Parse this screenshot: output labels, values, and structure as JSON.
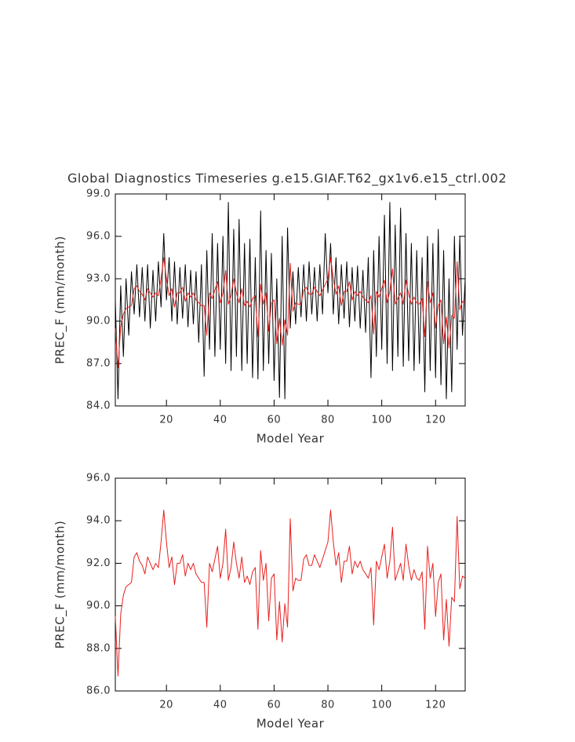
{
  "chart_data": [
    {
      "type": "line",
      "title": "Global Diagnostics Timeseries g.e15.GIAF.T62_gx1v6.e15_ctrl.002",
      "xlabel": "Model Year",
      "ylabel": "PREC_F (mm/month)",
      "x": [
        1,
        2,
        3,
        4,
        5,
        6,
        7,
        8,
        9,
        10,
        11,
        12,
        13,
        14,
        15,
        16,
        17,
        18,
        19,
        20,
        21,
        22,
        23,
        24,
        25,
        26,
        27,
        28,
        29,
        30,
        31,
        32,
        33,
        34,
        35,
        36,
        37,
        38,
        39,
        40,
        41,
        42,
        43,
        44,
        45,
        46,
        47,
        48,
        49,
        50,
        51,
        52,
        53,
        54,
        55,
        56,
        57,
        58,
        59,
        60,
        61,
        62,
        63,
        64,
        65,
        66,
        67,
        68,
        69,
        70,
        71,
        72,
        73,
        74,
        75,
        76,
        77,
        78,
        79,
        80,
        81,
        82,
        83,
        84,
        85,
        86,
        87,
        88,
        89,
        90,
        91,
        92,
        93,
        94,
        95,
        96,
        97,
        98,
        99,
        100,
        101,
        102,
        103,
        104,
        105,
        106,
        107,
        108,
        109,
        110,
        111,
        112,
        113,
        114,
        115,
        116,
        117,
        118,
        119,
        120,
        121,
        122,
        123,
        124,
        125,
        126,
        127,
        128,
        129,
        130,
        131
      ],
      "xlim": [
        1,
        131
      ],
      "xticks": [
        20,
        40,
        60,
        80,
        100,
        120
      ],
      "ylim": [
        84,
        99
      ],
      "yticks": [
        {
          "value": 84,
          "label": "84.0"
        },
        {
          "value": 87,
          "label": "87.0"
        },
        {
          "value": 90,
          "label": "90.0"
        },
        {
          "value": 93,
          "label": "93.0"
        },
        {
          "value": 96,
          "label": "96.0"
        },
        {
          "value": 99,
          "label": "99.0"
        }
      ],
      "series": [
        {
          "color": "#000000",
          "values": [
            91.5,
            84.5,
            92.5,
            87.5,
            93.0,
            89.0,
            93.5,
            90.5,
            94.0,
            90.3,
            93.8,
            90.0,
            94.0,
            89.5,
            93.6,
            90.0,
            94.2,
            91.0,
            96.2,
            91.5,
            94.5,
            90.0,
            94.2,
            89.8,
            93.8,
            90.2,
            94.0,
            89.6,
            93.6,
            89.8,
            93.5,
            88.5,
            94.0,
            86.1,
            95.0,
            88.0,
            96.2,
            87.5,
            95.5,
            88.0,
            96.0,
            87.0,
            98.4,
            86.5,
            96.5,
            87.5,
            97.2,
            86.5,
            95.5,
            87.0,
            95.8,
            86.0,
            94.5,
            85.9,
            97.8,
            86.5,
            95.0,
            87.0,
            94.8,
            85.8,
            93.0,
            84.6,
            96.0,
            84.5,
            96.6,
            89.5,
            93.5,
            89.8,
            93.8,
            90.3,
            94.0,
            90.0,
            94.2,
            90.5,
            93.8,
            90.0,
            94.0,
            90.5,
            96.2,
            92.0,
            95.5,
            90.5,
            94.5,
            89.8,
            94.0,
            90.2,
            94.2,
            89.6,
            93.8,
            90.0,
            93.9,
            89.5,
            93.6,
            89.2,
            94.5,
            86.0,
            95.0,
            87.5,
            96.0,
            88.0,
            97.5,
            87.0,
            98.4,
            86.5,
            96.8,
            87.5,
            98.0,
            86.8,
            96.2,
            87.2,
            95.5,
            86.5,
            95.0,
            87.0,
            94.5,
            85.0,
            96.0,
            86.5,
            95.5,
            86.0,
            96.5,
            85.5,
            95.0,
            84.5,
            93.0,
            85.0,
            96.0,
            88.0,
            96.0,
            89.0,
            93.0
          ]
        },
        {
          "color": "#e8201e",
          "values": [
            89.5,
            86.7,
            89.6,
            90.5,
            90.9,
            91.0,
            91.1,
            92.3,
            92.5,
            92.1,
            91.9,
            91.5,
            92.3,
            92.0,
            91.7,
            92.0,
            91.8,
            93.0,
            94.5,
            93.0,
            91.8,
            92.3,
            91.0,
            92.0,
            92.0,
            92.4,
            91.4,
            92.0,
            91.7,
            92.0,
            91.5,
            91.3,
            91.1,
            91.1,
            89.0,
            92.0,
            91.6,
            92.2,
            92.8,
            91.3,
            92.0,
            93.6,
            91.2,
            91.8,
            93.0,
            92.0,
            91.3,
            92.3,
            91.1,
            91.4,
            91.0,
            91.6,
            91.8,
            88.9,
            92.6,
            91.2,
            92.0,
            89.3,
            91.3,
            91.5,
            88.4,
            90.2,
            88.3,
            90.1,
            89.0,
            94.1,
            90.7,
            91.3,
            91.2,
            91.2,
            92.2,
            92.4,
            91.9,
            91.9,
            92.4,
            92.1,
            91.8,
            92.2,
            92.6,
            93.0,
            94.5,
            93.0,
            91.9,
            92.5,
            91.1,
            92.1,
            92.1,
            92.8,
            91.5,
            92.1,
            91.8,
            92.1,
            91.7,
            91.5,
            91.3,
            91.8,
            89.1,
            92.1,
            91.7,
            92.3,
            92.9,
            91.3,
            92.1,
            93.7,
            91.2,
            91.6,
            92.0,
            91.2,
            92.9,
            91.9,
            91.2,
            91.7,
            91.3,
            91.2,
            91.6,
            88.9,
            92.8,
            91.3,
            92.0,
            89.5,
            91.1,
            91.5,
            88.4,
            90.3,
            88.1,
            90.4,
            90.2,
            94.2,
            90.8,
            91.4,
            91.3
          ]
        }
      ]
    },
    {
      "type": "line",
      "xlabel": "Model Year",
      "ylabel": "PREC_F (mm/month)",
      "x": [
        1,
        2,
        3,
        4,
        5,
        6,
        7,
        8,
        9,
        10,
        11,
        12,
        13,
        14,
        15,
        16,
        17,
        18,
        19,
        20,
        21,
        22,
        23,
        24,
        25,
        26,
        27,
        28,
        29,
        30,
        31,
        32,
        33,
        34,
        35,
        36,
        37,
        38,
        39,
        40,
        41,
        42,
        43,
        44,
        45,
        46,
        47,
        48,
        49,
        50,
        51,
        52,
        53,
        54,
        55,
        56,
        57,
        58,
        59,
        60,
        61,
        62,
        63,
        64,
        65,
        66,
        67,
        68,
        69,
        70,
        71,
        72,
        73,
        74,
        75,
        76,
        77,
        78,
        79,
        80,
        81,
        82,
        83,
        84,
        85,
        86,
        87,
        88,
        89,
        90,
        91,
        92,
        93,
        94,
        95,
        96,
        97,
        98,
        99,
        100,
        101,
        102,
        103,
        104,
        105,
        106,
        107,
        108,
        109,
        110,
        111,
        112,
        113,
        114,
        115,
        116,
        117,
        118,
        119,
        120,
        121,
        122,
        123,
        124,
        125,
        126,
        127,
        128,
        129,
        130,
        131
      ],
      "xlim": [
        1,
        131
      ],
      "xticks": [
        20,
        40,
        60,
        80,
        100,
        120
      ],
      "ylim": [
        86,
        96
      ],
      "yticks": [
        {
          "value": 86,
          "label": "86.0"
        },
        {
          "value": 88,
          "label": "88.0"
        },
        {
          "value": 90,
          "label": "90.0"
        },
        {
          "value": 92,
          "label": "92.0"
        },
        {
          "value": 94,
          "label": "94.0"
        },
        {
          "value": 96,
          "label": "96.0"
        }
      ],
      "series": [
        {
          "color": "#e8201e",
          "values": [
            89.5,
            86.7,
            89.6,
            90.5,
            90.9,
            91.0,
            91.1,
            92.3,
            92.5,
            92.1,
            91.9,
            91.5,
            92.3,
            92.0,
            91.7,
            92.0,
            91.8,
            93.0,
            94.5,
            93.0,
            91.8,
            92.3,
            91.0,
            92.0,
            92.0,
            92.4,
            91.4,
            92.0,
            91.7,
            92.0,
            91.5,
            91.3,
            91.1,
            91.1,
            89.0,
            92.0,
            91.6,
            92.2,
            92.8,
            91.3,
            92.0,
            93.6,
            91.2,
            91.8,
            93.0,
            92.0,
            91.3,
            92.3,
            91.1,
            91.4,
            91.0,
            91.6,
            91.8,
            88.9,
            92.6,
            91.2,
            92.0,
            89.3,
            91.3,
            91.5,
            88.4,
            90.2,
            88.3,
            90.1,
            89.0,
            94.1,
            90.7,
            91.3,
            91.2,
            91.2,
            92.2,
            92.4,
            91.9,
            91.9,
            92.4,
            92.1,
            91.8,
            92.2,
            92.6,
            93.0,
            94.5,
            93.0,
            91.9,
            92.5,
            91.1,
            92.1,
            92.1,
            92.8,
            91.5,
            92.1,
            91.8,
            92.1,
            91.7,
            91.5,
            91.3,
            91.8,
            89.1,
            92.1,
            91.7,
            92.3,
            92.9,
            91.3,
            92.1,
            93.7,
            91.2,
            91.6,
            92.0,
            91.2,
            92.9,
            91.9,
            91.2,
            91.7,
            91.3,
            91.2,
            91.6,
            88.9,
            92.8,
            91.3,
            92.0,
            89.5,
            91.1,
            91.5,
            88.4,
            90.3,
            88.1,
            90.4,
            90.2,
            94.2,
            90.8,
            91.4,
            91.3
          ]
        }
      ]
    }
  ]
}
